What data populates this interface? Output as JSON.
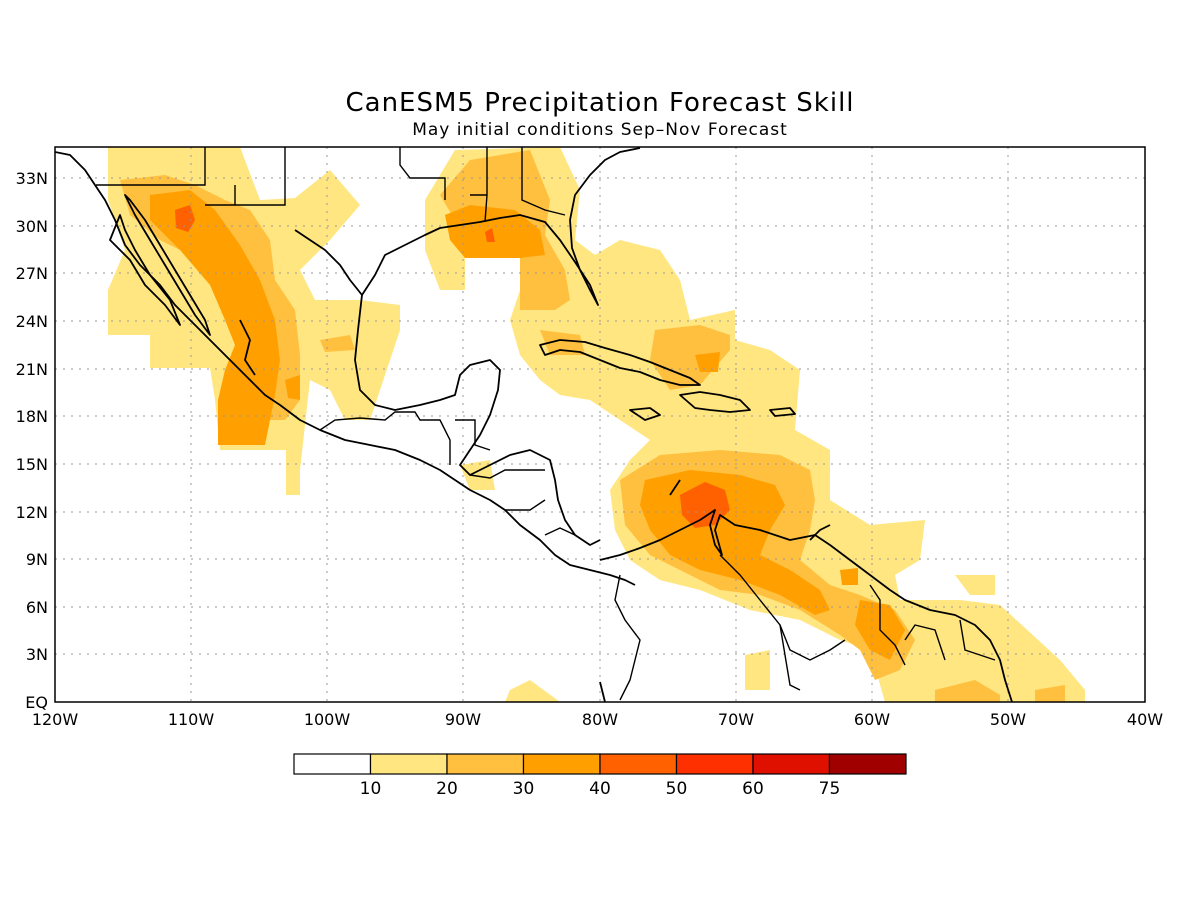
{
  "title": "CanESM5 Precipitation Forecast Skill",
  "subtitle": "May initial conditions  Sep–Nov Forecast",
  "x_ticks": [
    "120W",
    "110W",
    "100W",
    "90W",
    "80W",
    "70W",
    "60W",
    "50W",
    "40W"
  ],
  "y_ticks": [
    "EQ",
    "3N",
    "6N",
    "9N",
    "12N",
    "15N",
    "18N",
    "21N",
    "24N",
    "27N",
    "30N",
    "33N"
  ],
  "colorbar": {
    "labels": [
      "10",
      "20",
      "30",
      "40",
      "50",
      "60",
      "75"
    ],
    "colors": [
      "#ffffff",
      "#ffe680",
      "#ffc040",
      "#ffa000",
      "#ff6000",
      "#ff3000",
      "#e01000",
      "#a00000"
    ]
  },
  "colors": {
    "level_10": "#ffe680",
    "level_20": "#ffc040",
    "level_30": "#ffa000",
    "level_40": "#ff6000"
  }
}
